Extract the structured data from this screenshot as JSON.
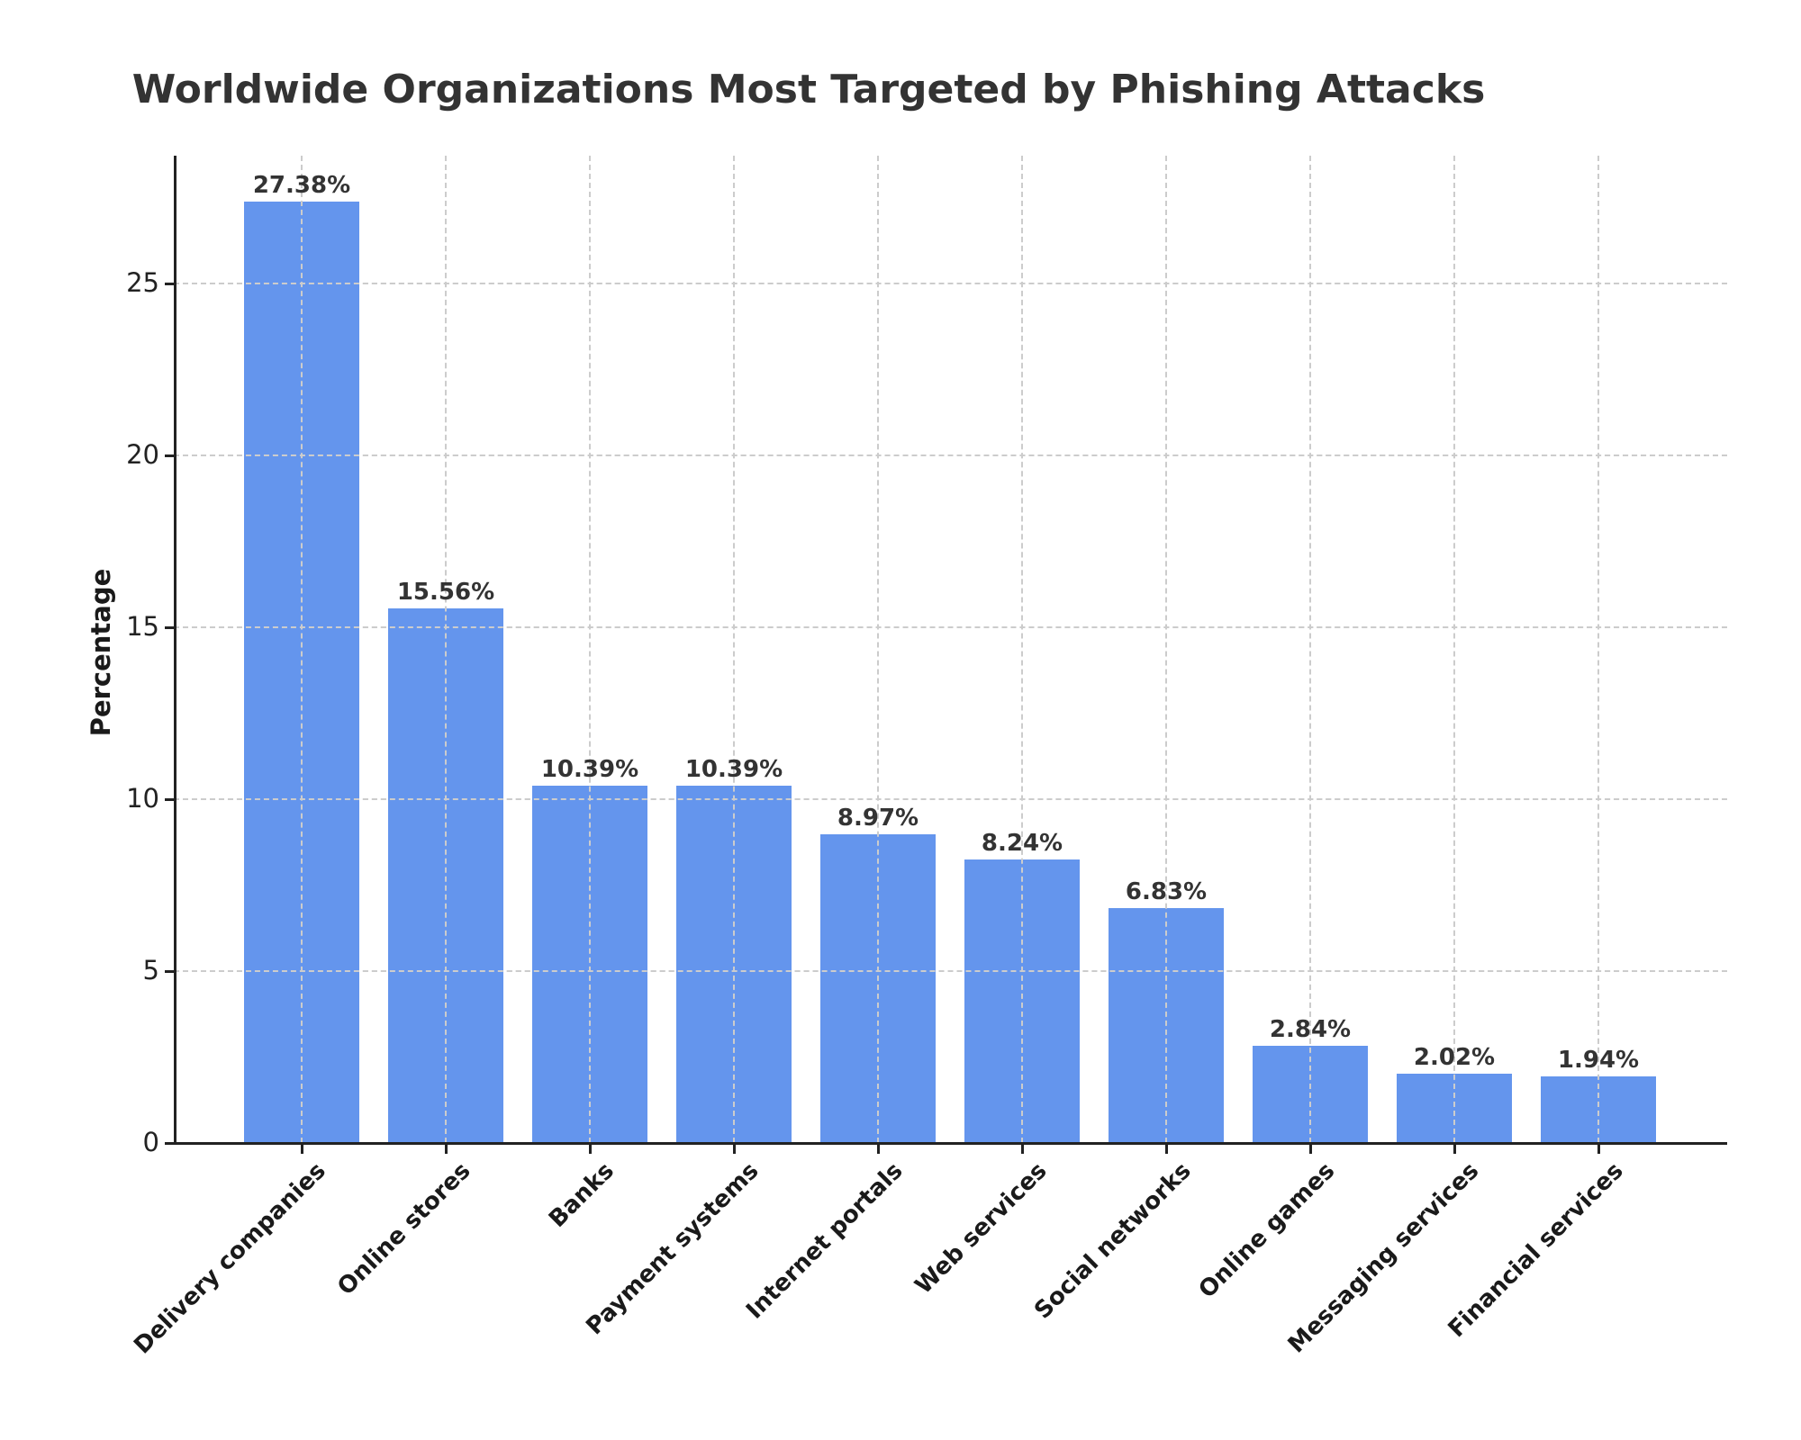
{
  "chart_data": {
    "type": "bar",
    "title": "Worldwide Organizations Most Targeted by Phishing Attacks",
    "xlabel": "",
    "ylabel": "Percentage",
    "categories": [
      "Delivery companies",
      "Online stores",
      "Banks",
      "Payment systems",
      "Internet portals",
      "Web services",
      "Social networks",
      "Online games",
      "Messaging services",
      "Financial services"
    ],
    "values": [
      27.38,
      15.56,
      10.39,
      10.39,
      8.97,
      8.24,
      6.83,
      2.84,
      2.02,
      1.94
    ],
    "value_labels": [
      "27.38%",
      "15.56%",
      "10.39%",
      "10.39%",
      "8.97%",
      "8.24%",
      "6.83%",
      "2.84%",
      "2.02%",
      "1.94%"
    ],
    "yticks": [
      0,
      5,
      10,
      15,
      20,
      25
    ],
    "ylim": [
      0,
      28.7
    ],
    "grid": true,
    "bar_color": "#6495ED",
    "x_tick_rotation": 45,
    "legend": null
  }
}
